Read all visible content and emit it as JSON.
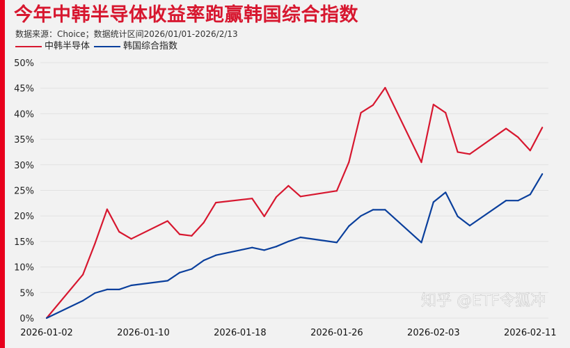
{
  "chart_data": {
    "type": "line",
    "title": "今年中韩半导体收益率跑赢韩国综合指数",
    "subtitle": "数据来源：Choice；数据统计区间2026/01/01-2026/2/13",
    "xlabel": "",
    "ylabel": "",
    "ylim": [
      0,
      50
    ],
    "grid": true,
    "legend_position": "top-left",
    "y_ticks": [
      "0%",
      "5%",
      "10%",
      "15%",
      "20%",
      "25%",
      "30%",
      "35%",
      "40%",
      "45%",
      "50%"
    ],
    "x_ticks": [
      "2026-01-02",
      "2026-01-10",
      "2026-01-18",
      "2026-01-26",
      "2026-02-03",
      "2026-02-11"
    ],
    "x": [
      "2026-01-02",
      "2026-01-05",
      "2026-01-06",
      "2026-01-07",
      "2026-01-08",
      "2026-01-09",
      "2026-01-12",
      "2026-01-13",
      "2026-01-14",
      "2026-01-15",
      "2026-01-16",
      "2026-01-19",
      "2026-01-20",
      "2026-01-21",
      "2026-01-22",
      "2026-01-23",
      "2026-01-26",
      "2026-01-27",
      "2026-01-28",
      "2026-01-29",
      "2026-01-30",
      "2026-02-02",
      "2026-02-03",
      "2026-02-04",
      "2026-02-05",
      "2026-02-06",
      "2026-02-09",
      "2026-02-10",
      "2026-02-11",
      "2026-02-12"
    ],
    "series": [
      {
        "name": "中韩半导体",
        "color": "#d7172f",
        "values": [
          0,
          8.5,
          14.6,
          21.3,
          16.9,
          15.5,
          19.0,
          16.4,
          16.1,
          18.7,
          22.6,
          23.4,
          19.9,
          23.7,
          25.9,
          23.8,
          24.9,
          30.5,
          40.2,
          41.7,
          45.1,
          30.5,
          41.8,
          40.2,
          32.5,
          32.1,
          37.1,
          35.4,
          32.8,
          37.3
        ]
      },
      {
        "name": "韩国综合指数",
        "color": "#0a3f9c",
        "values": [
          0,
          3.4,
          4.9,
          5.6,
          5.6,
          6.4,
          7.3,
          8.9,
          9.6,
          11.3,
          12.3,
          13.8,
          13.3,
          14.0,
          15.0,
          15.8,
          14.8,
          18.0,
          20.0,
          21.2,
          21.2,
          14.8,
          22.7,
          24.6,
          19.9,
          18.1,
          23.0,
          23.0,
          24.2,
          28.2
        ]
      }
    ],
    "watermark": "知乎 @ETF令狐冲"
  }
}
